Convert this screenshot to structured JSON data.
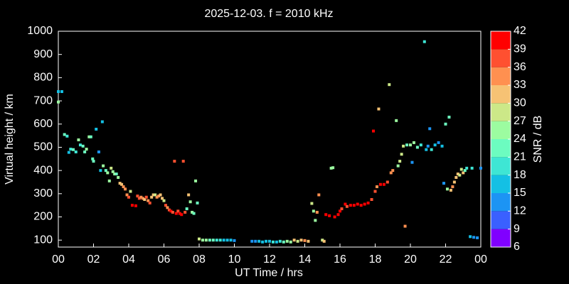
{
  "chart_data": {
    "type": "scatter",
    "title": "2025-12-03. f = 2010 kHz",
    "x_label": "UT Time / hrs",
    "y_label": "Virtual height / km",
    "xlim": [
      0,
      24
    ],
    "xticks": [
      {
        "value": 0,
        "label": "00"
      },
      {
        "value": 2,
        "label": "02"
      },
      {
        "value": 4,
        "label": "04"
      },
      {
        "value": 6,
        "label": "06"
      },
      {
        "value": 8,
        "label": "08"
      },
      10,
      12,
      14,
      16,
      18,
      20,
      22,
      {
        "value": 24,
        "label": "00"
      }
    ],
    "ylim": [
      70,
      1000
    ],
    "yticks": [
      100,
      200,
      300,
      400,
      500,
      600,
      700,
      800,
      900,
      1000
    ],
    "colorbar": {
      "label": "SNR / dB",
      "lim": [
        6,
        42
      ],
      "ticks": [
        6,
        9,
        12,
        15,
        18,
        21,
        24,
        27,
        30,
        33,
        36,
        39,
        42
      ],
      "colors": [
        "#8000ff",
        "#3a60ff",
        "#1c94f4",
        "#14c0e4",
        "#3ee6d4",
        "#6cfcc0",
        "#9cfca0",
        "#cce888",
        "#f6c274",
        "#ff9050",
        "#ff5030",
        "#ff0000"
      ]
    },
    "x": [
      0.0,
      0.2,
      0.0,
      0.35,
      0.5,
      0.6,
      0.7,
      0.85,
      1.0,
      1.15,
      1.25,
      1.4,
      1.5,
      1.6,
      1.75,
      1.85,
      1.95,
      2.0,
      2.15,
      2.3,
      2.4,
      2.5,
      2.55,
      2.7,
      2.8,
      2.9,
      3.0,
      3.1,
      3.2,
      3.3,
      3.4,
      3.5,
      3.6,
      3.7,
      3.8,
      3.9,
      4.0,
      4.1,
      4.2,
      4.4,
      4.5,
      4.6,
      4.7,
      4.8,
      4.9,
      5.0,
      5.1,
      5.2,
      5.3,
      5.4,
      5.5,
      5.6,
      5.7,
      5.8,
      5.9,
      6.0,
      6.1,
      6.2,
      6.3,
      6.4,
      6.5,
      6.6,
      6.7,
      6.8,
      6.9,
      7.0,
      7.1,
      7.2,
      7.3,
      7.4,
      7.5,
      7.6,
      7.7,
      7.8,
      7.9,
      8.0,
      8.2,
      8.4,
      8.6,
      8.8,
      9.0,
      9.2,
      9.4,
      9.6,
      9.8,
      10.0,
      11.0,
      11.2,
      11.4,
      11.6,
      11.8,
      12.0,
      12.2,
      12.4,
      12.6,
      12.8,
      13.0,
      13.2,
      13.4,
      13.6,
      13.8,
      14.0,
      14.2,
      14.4,
      14.5,
      14.6,
      14.7,
      14.8,
      15.0,
      15.1,
      15.2,
      15.4,
      15.5,
      15.6,
      15.7,
      15.9,
      16.0,
      16.1,
      16.3,
      16.4,
      16.6,
      16.8,
      17.0,
      17.2,
      17.4,
      17.6,
      17.8,
      17.9,
      18.0,
      18.1,
      18.2,
      18.3,
      18.5,
      18.7,
      18.8,
      18.9,
      19.0,
      19.2,
      19.3,
      19.4,
      19.5,
      19.6,
      19.7,
      19.8,
      20.0,
      20.1,
      20.2,
      20.4,
      20.6,
      20.8,
      20.9,
      21.0,
      21.1,
      21.2,
      21.4,
      21.6,
      21.8,
      21.9,
      22.0,
      22.1,
      22.2,
      22.3,
      22.4,
      22.5,
      22.6,
      22.7,
      22.8,
      22.9,
      23.0,
      23.1,
      23.2,
      23.4,
      23.5,
      23.6,
      23.8,
      24.0
    ],
    "values": [
      740,
      740,
      695,
      555,
      548,
      478,
      492,
      490,
      480,
      532,
      510,
      505,
      480,
      492,
      545,
      545,
      450,
      440,
      578,
      480,
      400,
      610,
      420,
      400,
      390,
      355,
      410,
      395,
      385,
      385,
      370,
      345,
      340,
      330,
      320,
      295,
      285,
      310,
      250,
      248,
      290,
      280,
      285,
      280,
      275,
      285,
      270,
      260,
      285,
      295,
      295,
      285,
      290,
      295,
      280,
      270,
      250,
      240,
      230,
      225,
      220,
      440,
      215,
      225,
      215,
      210,
      440,
      220,
      235,
      295,
      265,
      220,
      215,
      355,
      260,
      105,
      100,
      100,
      100,
      100,
      100,
      100,
      100,
      100,
      100,
      98,
      95,
      95,
      95,
      92,
      95,
      95,
      92,
      92,
      95,
      92,
      95,
      92,
      100,
      95,
      100,
      98,
      95,
      258,
      225,
      185,
      220,
      295,
      100,
      95,
      210,
      205,
      410,
      412,
      200,
      210,
      225,
      235,
      255,
      245,
      250,
      250,
      255,
      250,
      255,
      260,
      275,
      570,
      310,
      330,
      665,
      340,
      340,
      350,
      770,
      390,
      400,
      615,
      420,
      440,
      470,
      505,
      160,
      510,
      510,
      435,
      520,
      500,
      510,
      955,
      490,
      505,
      580,
      490,
      510,
      520,
      505,
      345,
      600,
      320,
      630,
      315,
      330,
      350,
      370,
      385,
      380,
      405,
      390,
      400,
      410,
      115,
      410,
      112,
      110,
      410
    ],
    "snr": [
      15,
      15,
      24,
      21,
      18,
      15,
      18,
      21,
      18,
      24,
      18,
      21,
      21,
      24,
      24,
      21,
      21,
      21,
      15,
      12,
      15,
      15,
      24,
      21,
      24,
      24,
      27,
      24,
      24,
      21,
      24,
      30,
      30,
      33,
      33,
      33,
      36,
      27,
      39,
      39,
      36,
      36,
      33,
      33,
      30,
      36,
      33,
      36,
      30,
      30,
      27,
      33,
      33,
      30,
      30,
      27,
      36,
      33,
      36,
      39,
      36,
      36,
      39,
      36,
      39,
      39,
      36,
      36,
      21,
      30,
      24,
      24,
      21,
      24,
      21,
      27,
      24,
      24,
      21,
      21,
      18,
      18,
      15,
      15,
      15,
      12,
      12,
      12,
      15,
      15,
      15,
      15,
      18,
      15,
      18,
      21,
      24,
      24,
      30,
      27,
      30,
      33,
      30,
      27,
      24,
      24,
      33,
      33,
      27,
      30,
      39,
      39,
      24,
      24,
      39,
      39,
      39,
      36,
      39,
      36,
      39,
      39,
      39,
      39,
      39,
      39,
      36,
      39,
      36,
      33,
      30,
      39,
      39,
      36,
      27,
      33,
      33,
      24,
      24,
      27,
      27,
      27,
      33,
      21,
      24,
      12,
      24,
      21,
      18,
      18,
      15,
      12,
      12,
      18,
      15,
      12,
      15,
      12,
      21,
      24,
      21,
      30,
      33,
      30,
      30,
      30,
      27,
      27,
      30,
      21,
      18,
      15,
      18,
      12,
      12,
      12
    ]
  }
}
